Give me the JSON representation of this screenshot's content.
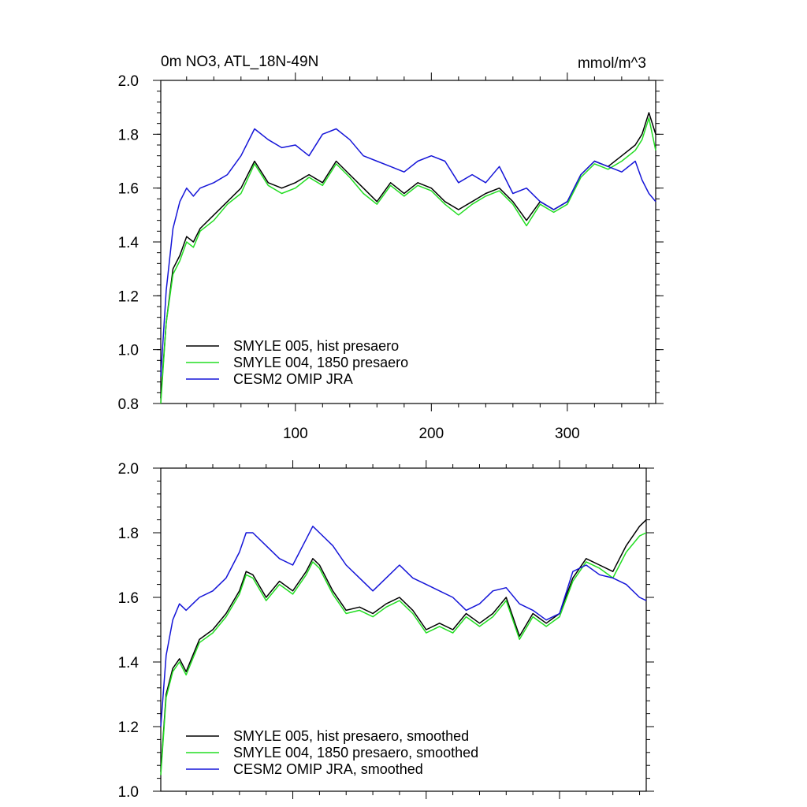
{
  "figure": {
    "title_left": "0m NO3, ATL_18N-49N",
    "title_right": "mmol/m^3"
  },
  "colors": {
    "black": "#000000",
    "green": "#22dd22",
    "blue": "#1515d8"
  },
  "chart_data": [
    {
      "type": "line",
      "title": "0m NO3, ATL_18N-49N",
      "units": "mmol/m^3",
      "xlim": [
        1,
        365
      ],
      "ylim": [
        0.8,
        2.0
      ],
      "xticks": [
        100,
        200,
        300
      ],
      "yticks": [
        0.8,
        1.0,
        1.2,
        1.4,
        1.6,
        1.8,
        2.0
      ],
      "yticklabels": [
        "0.8",
        "1.0",
        "1.2",
        "1.4",
        "1.6",
        "1.8",
        "2.0"
      ],
      "legend_location": "lower-left",
      "series": [
        {
          "name": "SMYLE 005, hist presaero",
          "color": "#000000",
          "x": [
            1,
            5,
            10,
            15,
            20,
            25,
            30,
            40,
            50,
            60,
            70,
            80,
            90,
            100,
            110,
            120,
            130,
            140,
            150,
            160,
            170,
            180,
            190,
            200,
            210,
            220,
            230,
            240,
            250,
            260,
            270,
            280,
            290,
            300,
            310,
            320,
            330,
            340,
            350,
            355,
            360,
            365
          ],
          "values": [
            0.82,
            1.1,
            1.3,
            1.35,
            1.42,
            1.4,
            1.45,
            1.5,
            1.55,
            1.6,
            1.7,
            1.62,
            1.6,
            1.62,
            1.65,
            1.62,
            1.7,
            1.65,
            1.6,
            1.55,
            1.62,
            1.58,
            1.62,
            1.6,
            1.55,
            1.52,
            1.55,
            1.58,
            1.6,
            1.55,
            1.48,
            1.55,
            1.52,
            1.55,
            1.65,
            1.7,
            1.68,
            1.72,
            1.76,
            1.8,
            1.88,
            1.8
          ]
        },
        {
          "name": "SMYLE 004, 1850 presaero",
          "color": "#22dd22",
          "x": [
            1,
            5,
            10,
            15,
            20,
            25,
            30,
            40,
            50,
            60,
            70,
            80,
            90,
            100,
            110,
            120,
            130,
            140,
            150,
            160,
            170,
            180,
            190,
            200,
            210,
            220,
            230,
            240,
            250,
            260,
            270,
            280,
            290,
            300,
            310,
            320,
            330,
            340,
            350,
            355,
            360,
            365
          ],
          "values": [
            0.8,
            1.1,
            1.28,
            1.33,
            1.4,
            1.38,
            1.44,
            1.48,
            1.54,
            1.58,
            1.69,
            1.61,
            1.58,
            1.6,
            1.64,
            1.61,
            1.69,
            1.64,
            1.58,
            1.54,
            1.61,
            1.57,
            1.61,
            1.59,
            1.54,
            1.5,
            1.54,
            1.57,
            1.59,
            1.54,
            1.46,
            1.54,
            1.51,
            1.54,
            1.64,
            1.69,
            1.67,
            1.7,
            1.74,
            1.78,
            1.86,
            1.74
          ]
        },
        {
          "name": "CESM2 OMIP JRA",
          "color": "#1515d8",
          "x": [
            1,
            5,
            10,
            15,
            20,
            25,
            30,
            40,
            50,
            60,
            70,
            80,
            90,
            100,
            110,
            120,
            130,
            140,
            150,
            160,
            170,
            180,
            190,
            200,
            210,
            220,
            230,
            240,
            250,
            260,
            270,
            280,
            290,
            300,
            310,
            320,
            330,
            340,
            350,
            355,
            360,
            365
          ],
          "values": [
            0.9,
            1.22,
            1.45,
            1.55,
            1.6,
            1.57,
            1.6,
            1.62,
            1.65,
            1.72,
            1.82,
            1.78,
            1.75,
            1.76,
            1.72,
            1.8,
            1.82,
            1.78,
            1.72,
            1.7,
            1.68,
            1.66,
            1.7,
            1.72,
            1.7,
            1.62,
            1.65,
            1.62,
            1.68,
            1.58,
            1.6,
            1.55,
            1.52,
            1.55,
            1.65,
            1.7,
            1.68,
            1.66,
            1.7,
            1.63,
            1.58,
            1.55
          ]
        }
      ]
    },
    {
      "type": "line",
      "xlim": [
        1,
        365
      ],
      "ylim": [
        1.0,
        2.0
      ],
      "xticks": [
        100,
        200,
        300
      ],
      "yticks": [
        1.0,
        1.2,
        1.4,
        1.6,
        1.8,
        2.0
      ],
      "yticklabels": [
        "1.0",
        "1.2",
        "1.4",
        "1.6",
        "1.8",
        "2.0"
      ],
      "legend_location": "lower-left",
      "series": [
        {
          "name": "SMYLE 005, hist presaero, smoothed",
          "color": "#000000",
          "x": [
            1,
            5,
            10,
            15,
            20,
            25,
            30,
            40,
            50,
            60,
            65,
            70,
            80,
            90,
            100,
            110,
            115,
            120,
            130,
            140,
            150,
            160,
            170,
            180,
            190,
            200,
            210,
            220,
            230,
            240,
            250,
            260,
            270,
            280,
            290,
            300,
            310,
            320,
            330,
            340,
            350,
            360,
            365
          ],
          "values": [
            1.06,
            1.3,
            1.38,
            1.41,
            1.37,
            1.42,
            1.47,
            1.5,
            1.55,
            1.62,
            1.68,
            1.67,
            1.6,
            1.65,
            1.62,
            1.68,
            1.72,
            1.7,
            1.62,
            1.56,
            1.57,
            1.55,
            1.58,
            1.6,
            1.56,
            1.5,
            1.52,
            1.5,
            1.55,
            1.52,
            1.55,
            1.6,
            1.48,
            1.55,
            1.52,
            1.55,
            1.66,
            1.72,
            1.7,
            1.68,
            1.76,
            1.82,
            1.84
          ]
        },
        {
          "name": "SMYLE 004, 1850 presaero, smoothed",
          "color": "#22dd22",
          "x": [
            1,
            5,
            10,
            15,
            20,
            25,
            30,
            40,
            50,
            60,
            65,
            70,
            80,
            90,
            100,
            110,
            115,
            120,
            130,
            140,
            150,
            160,
            170,
            180,
            190,
            200,
            210,
            220,
            230,
            240,
            250,
            260,
            270,
            280,
            290,
            300,
            310,
            320,
            330,
            340,
            350,
            360,
            365
          ],
          "values": [
            1.05,
            1.29,
            1.37,
            1.4,
            1.36,
            1.41,
            1.46,
            1.49,
            1.54,
            1.61,
            1.67,
            1.66,
            1.59,
            1.64,
            1.61,
            1.67,
            1.71,
            1.69,
            1.61,
            1.55,
            1.56,
            1.54,
            1.57,
            1.59,
            1.55,
            1.49,
            1.51,
            1.49,
            1.54,
            1.51,
            1.54,
            1.59,
            1.47,
            1.54,
            1.51,
            1.54,
            1.65,
            1.71,
            1.69,
            1.66,
            1.74,
            1.79,
            1.8
          ]
        },
        {
          "name": "CESM2 OMIP JRA, smoothed",
          "color": "#1515d8",
          "x": [
            1,
            5,
            10,
            15,
            20,
            25,
            30,
            40,
            50,
            60,
            65,
            70,
            80,
            90,
            100,
            110,
            115,
            120,
            130,
            140,
            150,
            160,
            170,
            180,
            190,
            200,
            210,
            220,
            230,
            240,
            250,
            260,
            270,
            280,
            290,
            300,
            310,
            320,
            330,
            340,
            350,
            360,
            365
          ],
          "values": [
            1.2,
            1.42,
            1.53,
            1.58,
            1.56,
            1.58,
            1.6,
            1.62,
            1.66,
            1.74,
            1.8,
            1.8,
            1.76,
            1.72,
            1.7,
            1.78,
            1.82,
            1.8,
            1.76,
            1.7,
            1.66,
            1.62,
            1.66,
            1.7,
            1.66,
            1.64,
            1.62,
            1.6,
            1.56,
            1.58,
            1.62,
            1.63,
            1.58,
            1.56,
            1.53,
            1.55,
            1.68,
            1.7,
            1.67,
            1.66,
            1.64,
            1.6,
            1.59
          ]
        }
      ]
    }
  ]
}
